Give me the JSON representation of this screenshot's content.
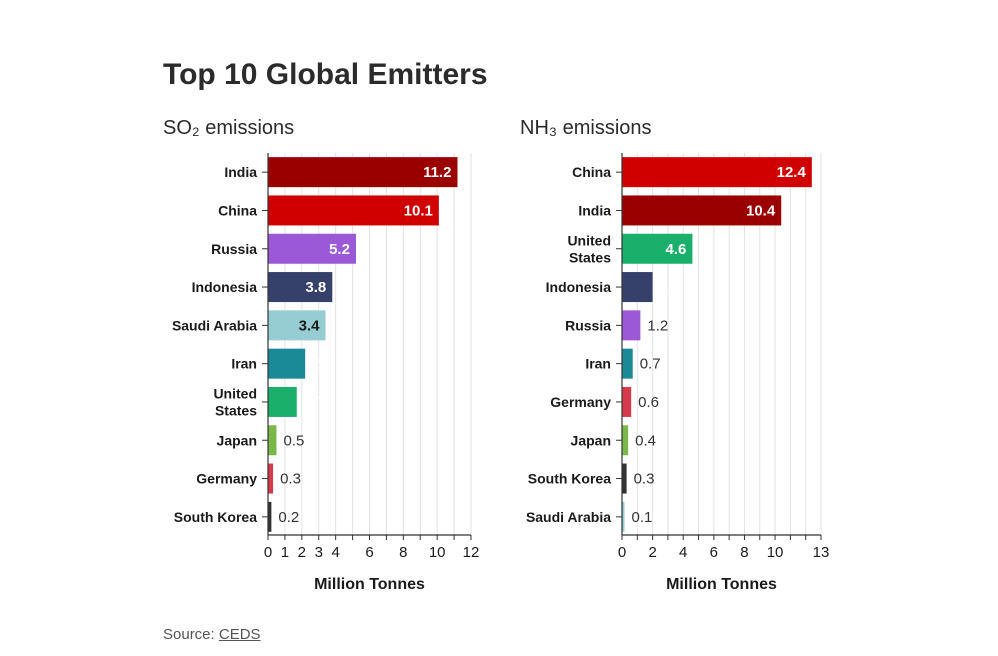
{
  "title": "Top 10 Global Emitters",
  "source": {
    "prefix": "Source: ",
    "link": "CEDS"
  },
  "chart_data": [
    {
      "type": "bar",
      "orientation": "horizontal",
      "title": "SO₂ emissions",
      "xlabel": "Million Tonnes",
      "xlim": [
        0,
        12
      ],
      "xticks": [
        0,
        1,
        2,
        3,
        4,
        6,
        8,
        10,
        12
      ],
      "grid": true,
      "categories": [
        "India",
        "China",
        "Russia",
        "Indonesia",
        "Saudi Arabia",
        "Iran",
        "United States",
        "Japan",
        "Germany",
        "South Korea"
      ],
      "values": [
        11.2,
        10.1,
        5.2,
        3.8,
        3.4,
        2.2,
        1.7,
        0.5,
        0.3,
        0.2
      ],
      "colors": [
        "#9b0000",
        "#d10000",
        "#9b59d8",
        "#35406b",
        "#96cdd3",
        "#1a8a96",
        "#1ab06b",
        "#7ab84a",
        "#d63a4a",
        "#333333"
      ],
      "labelColors": [
        "#ffffff",
        "#ffffff",
        "#ffffff",
        "#ffffff",
        "#1a1a1a",
        "#ffffff",
        "#ffffff",
        "#333333",
        "#333333",
        "#333333"
      ]
    },
    {
      "type": "bar",
      "orientation": "horizontal",
      "title": "NH₃ emissions",
      "xlabel": "Million Tonnes",
      "xlim": [
        0,
        13
      ],
      "xticks": [
        0,
        2,
        4,
        6,
        8,
        10,
        13
      ],
      "grid": true,
      "categories": [
        "China",
        "India",
        "United States",
        "Indonesia",
        "Russia",
        "Iran",
        "Germany",
        "Japan",
        "South Korea",
        "Saudi Arabia"
      ],
      "values": [
        12.4,
        10.4,
        4.6,
        2,
        1.2,
        0.7,
        0.6,
        0.4,
        0.3,
        0.1
      ],
      "colors": [
        "#d10000",
        "#9b0000",
        "#1ab06b",
        "#35406b",
        "#9b59d8",
        "#1a8a96",
        "#d63a4a",
        "#7ab84a",
        "#333333",
        "#96cdd3"
      ],
      "labelColors": [
        "#ffffff",
        "#ffffff",
        "#ffffff",
        "#ffffff",
        "#333333",
        "#333333",
        "#333333",
        "#333333",
        "#333333",
        "#333333"
      ]
    }
  ]
}
